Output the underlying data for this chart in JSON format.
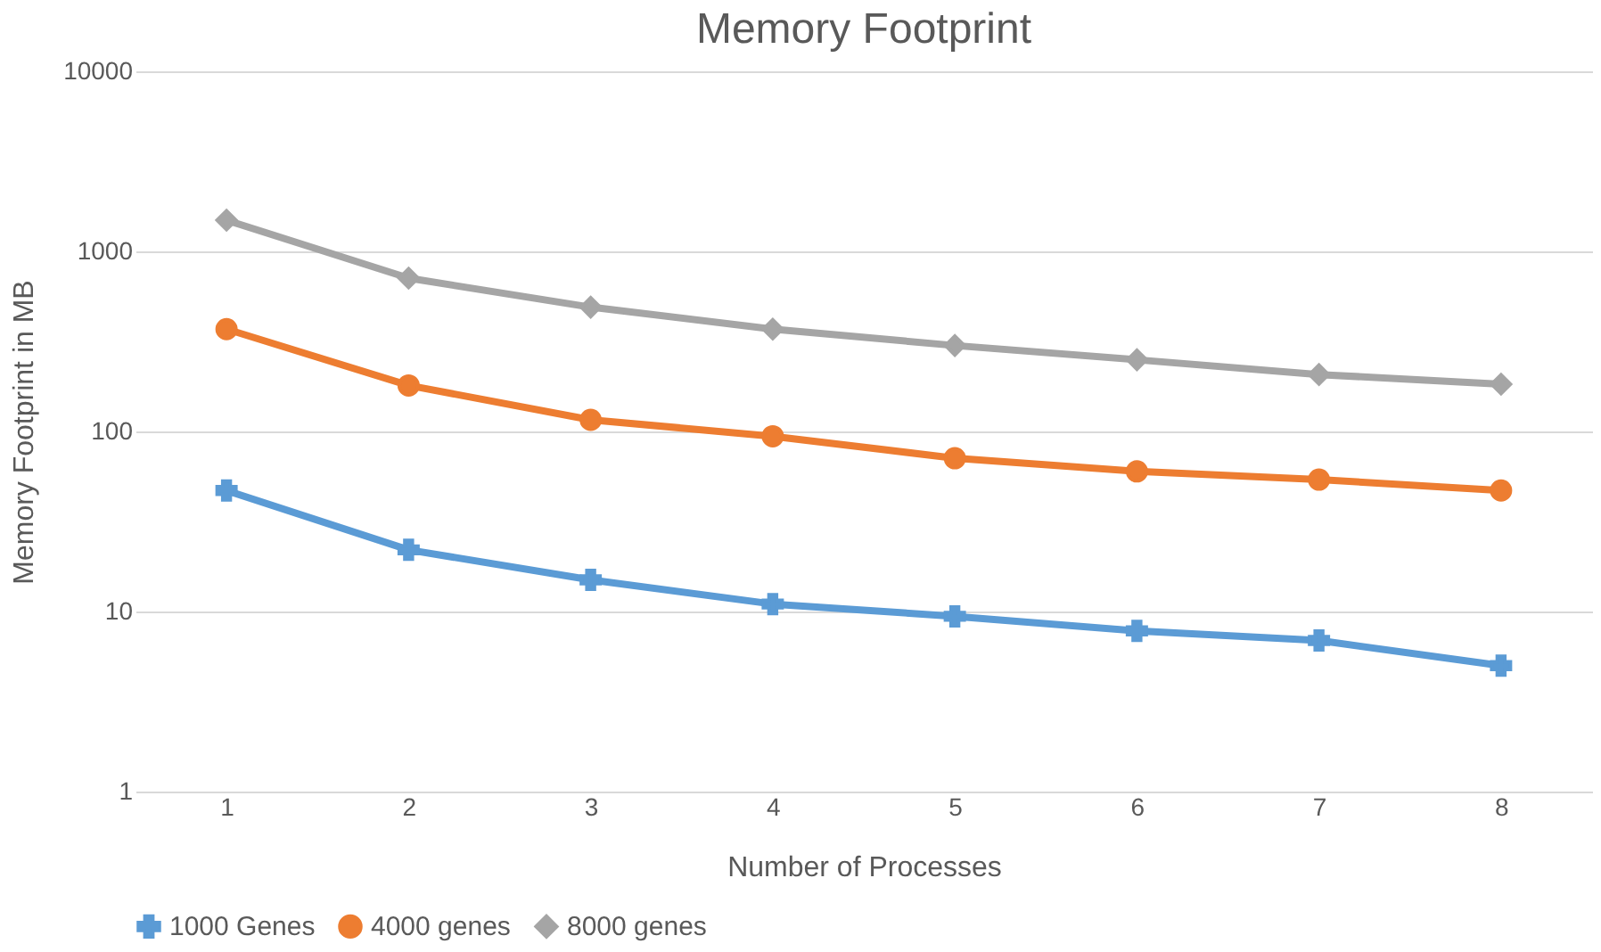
{
  "chart_data": {
    "type": "line",
    "title": "Memory Footprint",
    "xlabel": "Number of  Processes",
    "ylabel": "Memory Footprint in MB",
    "categories": [
      "1",
      "2",
      "3",
      "4",
      "5",
      "6",
      "7",
      "8"
    ],
    "series": [
      {
        "name": "1000 Genes",
        "color": "#5b9bd5",
        "marker": "cross",
        "values": [
          47,
          22,
          15,
          11,
          9.4,
          7.8,
          6.9,
          5
        ]
      },
      {
        "name": "4000 genes",
        "color": "#ed7d31",
        "marker": "circle",
        "values": [
          370,
          180,
          116,
          94,
          71,
          60,
          54,
          47
        ]
      },
      {
        "name": "8000 genes",
        "color": "#a5a5a5",
        "marker": "diamond",
        "values": [
          1490,
          710,
          490,
          370,
          300,
          250,
          207,
          183
        ]
      }
    ],
    "log": true,
    "ylim": [
      1,
      10000
    ],
    "yticks": [
      1,
      10,
      100,
      1000,
      10000
    ],
    "grid": "y",
    "legend": "bottom",
    "line_style": "solid"
  }
}
